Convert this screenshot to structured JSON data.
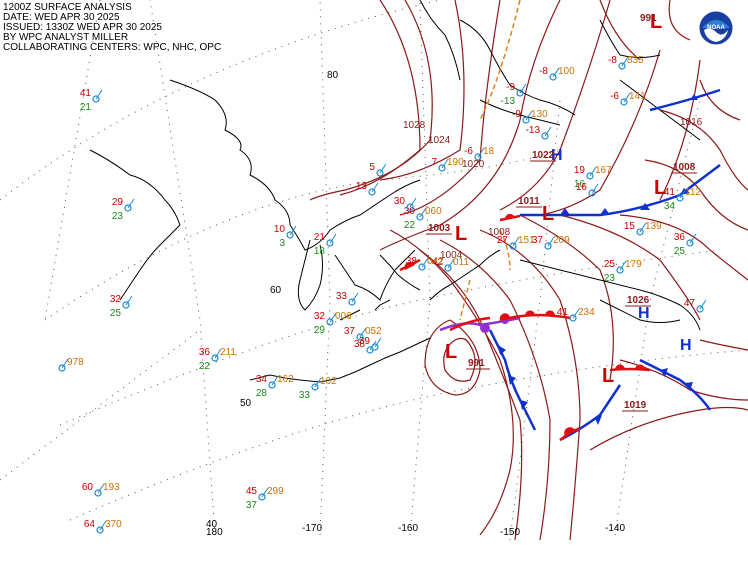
{
  "header": {
    "line1": "1200Z SURFACE ANALYSIS",
    "line2": "DATE: WED APR 30 2025",
    "line3": "ISSUED: 1330Z WED APR 30 2025",
    "line4": "BY WPC ANALYST MILLER",
    "line5": "COLLABORATING CENTERS: WPC, NHC, OPC"
  },
  "logo": {
    "icon": "noaa-logo",
    "text": "NOAA"
  },
  "grid": {
    "latitudes": [
      "80",
      "60",
      "50",
      "40"
    ],
    "longitudes": [
      "180",
      "-170",
      "-160",
      "-150",
      "-140"
    ]
  },
  "pressure_centers": [
    {
      "type": "L",
      "pressure": "991"
    },
    {
      "type": "L",
      "pressure": "1019"
    },
    {
      "type": "L",
      "pressure": "1008"
    },
    {
      "type": "L",
      "pressure": "1011"
    },
    {
      "type": "L",
      "pressure": "1003"
    },
    {
      "type": "L",
      "pressure": "991"
    },
    {
      "type": "H",
      "pressure": "1022"
    },
    {
      "type": "H",
      "pressure": "1026"
    },
    {
      "type": "H",
      "pressure": ""
    }
  ],
  "isobar_labels": [
    "1028",
    "1024",
    "1020",
    "1016",
    "1004",
    "1008"
  ],
  "stations": [
    {
      "temp": "41",
      "dew": "21",
      "pres": ""
    },
    {
      "temp": "29",
      "dew": "23",
      "pres": ""
    },
    {
      "temp": "10",
      "dew": "3",
      "pres": ""
    },
    {
      "temp": "21",
      "dew": "18",
      "pres": ""
    },
    {
      "temp": "32",
      "dew": "25",
      "pres": ""
    },
    {
      "temp": "32",
      "dew": "29",
      "pres": "006"
    },
    {
      "temp": "36",
      "dew": "22",
      "pres": "211"
    },
    {
      "temp": "34",
      "dew": "28",
      "pres": "162"
    },
    {
      "temp": "",
      "dew": "33",
      "pres": "102"
    },
    {
      "temp": "",
      "dew": "",
      "pres": "978"
    },
    {
      "temp": "60",
      "dew": "",
      "pres": "193"
    },
    {
      "temp": "45",
      "dew": "37",
      "pres": "299"
    },
    {
      "temp": "64",
      "dew": "",
      "pres": "370"
    },
    {
      "temp": "38",
      "dew": "",
      "pres": ""
    },
    {
      "temp": "37",
      "dew": "",
      "pres": "209"
    },
    {
      "temp": "27",
      "dew": "",
      "pres": "151"
    },
    {
      "temp": "25",
      "dew": "23",
      "pres": "179"
    },
    {
      "temp": "15",
      "dew": "",
      "pres": "139"
    },
    {
      "temp": "41",
      "dew": "34",
      "pres": "112"
    },
    {
      "temp": "36",
      "dew": "25",
      "pres": ""
    },
    {
      "temp": "42",
      "dew": "",
      "pres": "011"
    },
    {
      "temp": "37",
      "dew": "",
      "pres": "052"
    },
    {
      "temp": "30",
      "dew": "22",
      "pres": "060"
    },
    {
      "temp": "7",
      "dew": "",
      "pres": "190"
    },
    {
      "temp": "-6",
      "dew": "",
      "pres": "18"
    },
    {
      "temp": "13",
      "dew": "",
      "pres": ""
    },
    {
      "temp": "5",
      "dew": "",
      "pres": ""
    },
    {
      "temp": "19",
      "dew": "16",
      "pres": "167"
    },
    {
      "temp": "-9",
      "dew": "",
      "pres": "130"
    },
    {
      "temp": "-8",
      "dew": "",
      "pres": "835"
    },
    {
      "temp": "-6",
      "dew": "",
      "pres": "141"
    },
    {
      "temp": "-13",
      "dew": "",
      "pres": ""
    },
    {
      "temp": "-9",
      "dew": "-13",
      "pres": ""
    },
    {
      "temp": "-8",
      "dew": "",
      "pres": "100"
    },
    {
      "temp": "16",
      "dew": "",
      "pres": ""
    },
    {
      "temp": "38",
      "dew": "",
      "pres": "042"
    },
    {
      "temp": "41",
      "dew": "",
      "pres": "234"
    },
    {
      "temp": "47",
      "dew": "",
      "pres": ""
    },
    {
      "temp": "33",
      "dew": "",
      "pres": ""
    },
    {
      "temp": "39",
      "dew": "",
      "pres": ""
    },
    {
      "temp": "30",
      "dew": "",
      "pres": ""
    }
  ],
  "colors": {
    "isobar": "#8b1a1a",
    "grid": "#555555",
    "coast": "#000000",
    "cold_front": "#1030d0",
    "warm_front": "#e01010",
    "occluded_front": "#9030d0",
    "trough": "#e08020",
    "station_temp": "#cc0000",
    "station_dew": "#1a8a1a",
    "station_pres": "#d07000",
    "station_circle": "#1a8ad0",
    "low": "#cc0000",
    "high": "#1030d0"
  }
}
